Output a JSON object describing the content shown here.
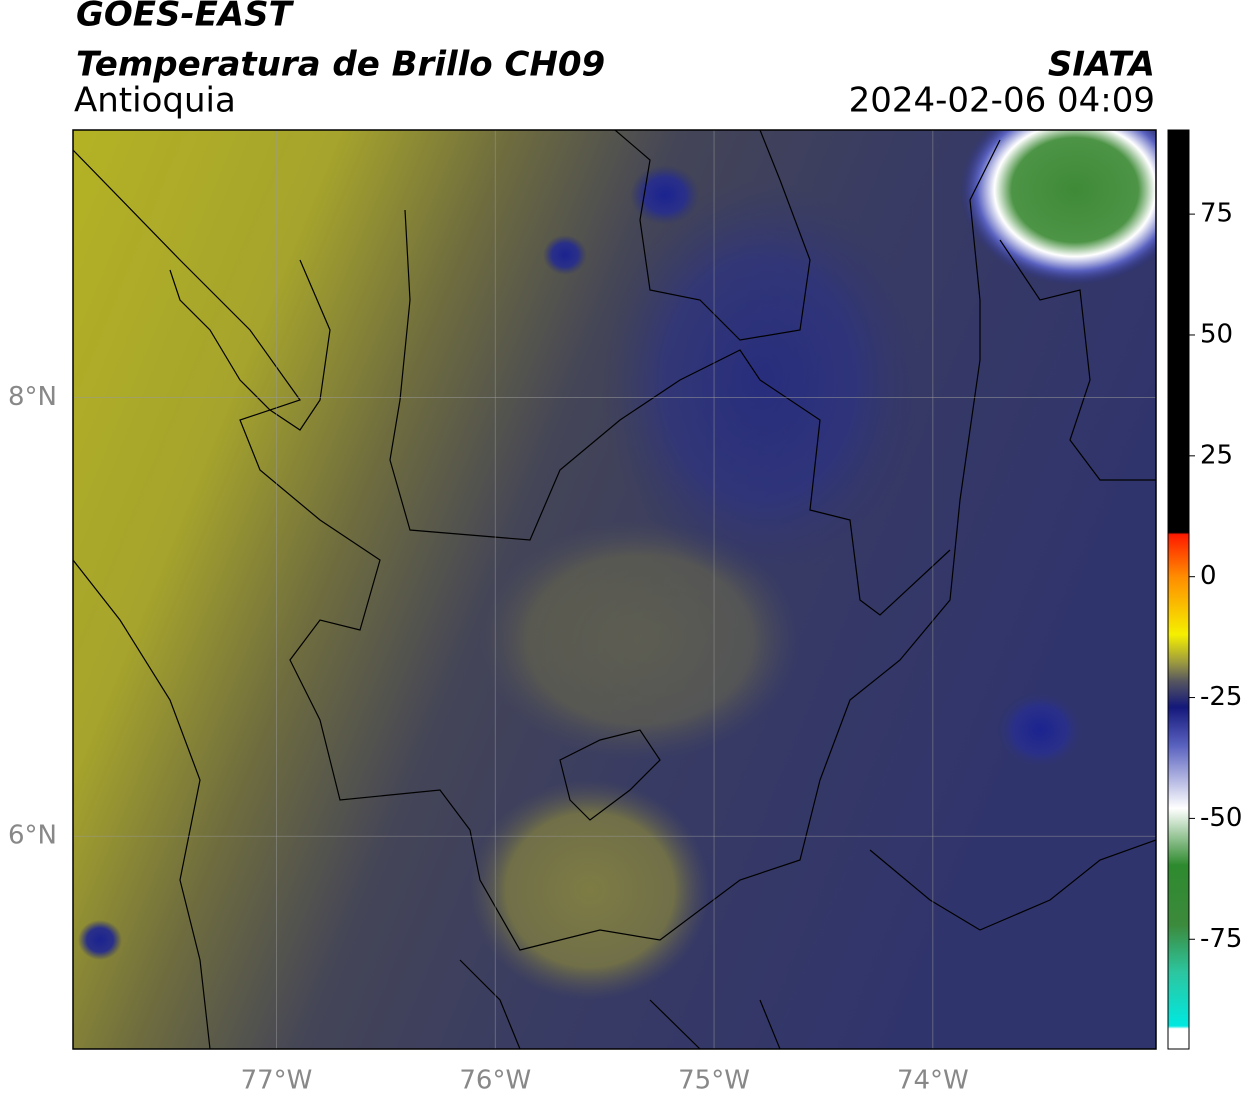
{
  "header": {
    "title": "GOES-EAST",
    "subtitle": "Temperatura de Brillo CH09",
    "region": "Antioquia",
    "source": "SIATA",
    "timestamp": "2024-02-06 04:09"
  },
  "map": {
    "xlim": [
      -77.93,
      -72.98
    ],
    "ylim": [
      5.03,
      9.22
    ],
    "xticks": [
      {
        "value": -77,
        "label": "77°W"
      },
      {
        "value": -76,
        "label": "76°W"
      },
      {
        "value": -75,
        "label": "75°W"
      },
      {
        "value": -74,
        "label": "74°W"
      }
    ],
    "yticks": [
      {
        "value": 8,
        "label": "8°N"
      },
      {
        "value": 6,
        "label": "6°N"
      }
    ],
    "grid": true
  },
  "colorbar": {
    "lim": [
      -97.7,
      92.4
    ],
    "ticks": [
      -75,
      -50,
      -25,
      0,
      25,
      50,
      75
    ]
  }
}
